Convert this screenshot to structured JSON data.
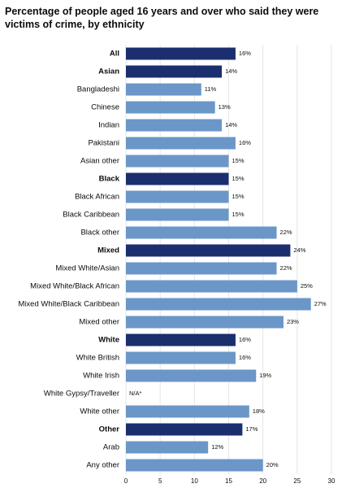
{
  "chart_data": {
    "type": "bar",
    "orientation": "horizontal",
    "title": "Percentage of people aged 16 years and over who said they were victims of crime, by ethnicity",
    "categories": [
      "All",
      "Asian",
      "Bangladeshi",
      "Chinese",
      "Indian",
      "Pakistani",
      "Asian other",
      "Black",
      "Black African",
      "Black Caribbean",
      "Black other",
      "Mixed",
      "Mixed White/Asian",
      "Mixed White/Black African",
      "Mixed White/Black Caribbean",
      "Mixed other",
      "White",
      "White British",
      "White Irish",
      "White Gypsy/Traveller",
      "White other",
      "Other",
      "Arab",
      "Any other"
    ],
    "values": [
      16,
      14,
      11,
      13,
      14,
      16,
      15,
      15,
      15,
      15,
      22,
      24,
      22,
      25,
      27,
      23,
      16,
      16,
      19,
      null,
      18,
      17,
      12,
      20
    ],
    "value_labels": [
      "16%",
      "14%",
      "11%",
      "13%",
      "14%",
      "16%",
      "15%",
      "15%",
      "15%",
      "15%",
      "22%",
      "24%",
      "22%",
      "25%",
      "27%",
      "23%",
      "16%",
      "16%",
      "19%",
      "N/A*",
      "18%",
      "17%",
      "12%",
      "20%"
    ],
    "highlighted": [
      true,
      true,
      false,
      false,
      false,
      false,
      false,
      true,
      false,
      false,
      false,
      true,
      false,
      false,
      false,
      false,
      true,
      false,
      false,
      false,
      false,
      true,
      false,
      false
    ],
    "color": "#6b96c8",
    "highlight_color": "#1b2f6e",
    "xlim": [
      0,
      30
    ],
    "xticks": [
      0,
      5,
      10,
      15,
      20,
      25,
      30
    ],
    "grid": true
  }
}
